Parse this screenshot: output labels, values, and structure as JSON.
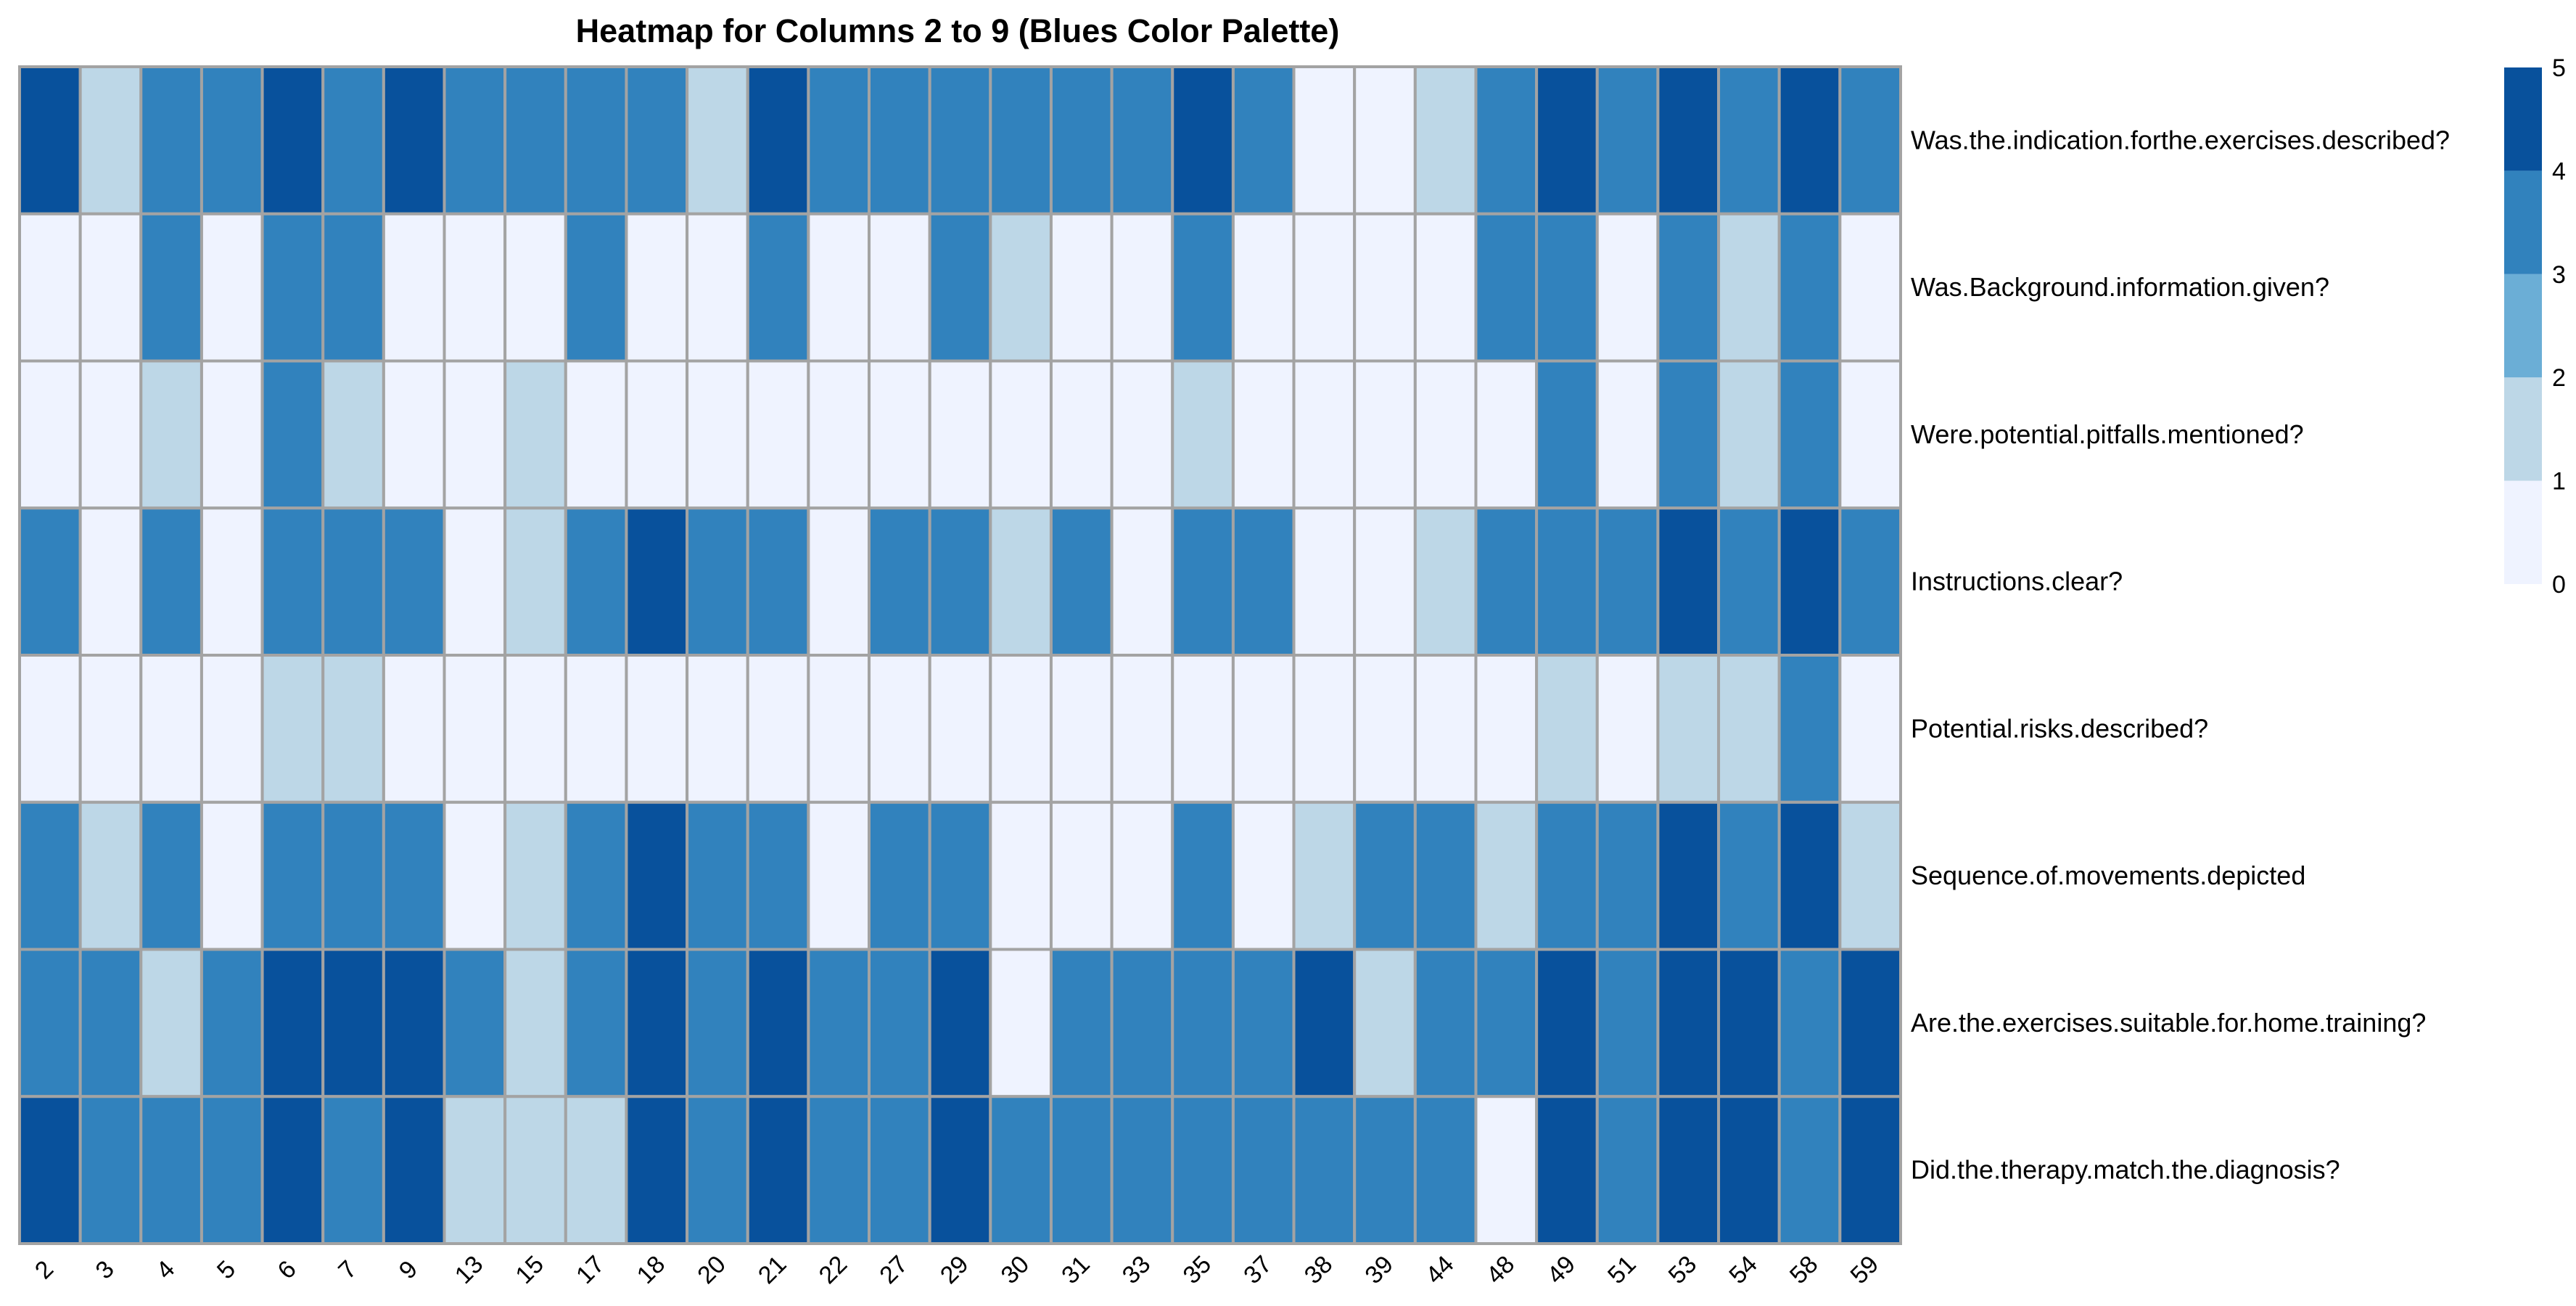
{
  "chart_data": {
    "type": "heatmap",
    "title": "Heatmap for Columns 2 to 9 (Blues Color Palette)",
    "columns": [
      "2",
      "3",
      "4",
      "5",
      "6",
      "7",
      "9",
      "13",
      "15",
      "17",
      "18",
      "20",
      "21",
      "22",
      "27",
      "29",
      "30",
      "31",
      "33",
      "35",
      "37",
      "38",
      "39",
      "44",
      "48",
      "49",
      "51",
      "53",
      "54",
      "58",
      "59"
    ],
    "rows": [
      "Was.the.indication.forthe.exercises.described?",
      "Was.Background.information.given?",
      "Were.potential.pitfalls.mentioned?",
      "Instructions.clear?",
      "Potential.risks.described?",
      "Sequence.of.movements.depicted",
      "Are.the.exercises.suitable.for.home.training?",
      "Did.the.therapy.match.the.diagnosis?"
    ],
    "values": [
      [
        5,
        1,
        3,
        3,
        5,
        4,
        5,
        3,
        4,
        4,
        4,
        1,
        5,
        3,
        3,
        4,
        3,
        3,
        3,
        5,
        3,
        0,
        0,
        1,
        3,
        5,
        3,
        5,
        4,
        5,
        3
      ],
      [
        0,
        0,
        3,
        0,
        3,
        3,
        0,
        0,
        0,
        3,
        0,
        0,
        3,
        0,
        0,
        4,
        1,
        0,
        0,
        4,
        0,
        0,
        0,
        0,
        4,
        3,
        0,
        4,
        1,
        4,
        0
      ],
      [
        0,
        0,
        1,
        0,
        3,
        1,
        0,
        0,
        1,
        0,
        0,
        0,
        0,
        0,
        0,
        0,
        0,
        0,
        0,
        1,
        0,
        0,
        0,
        0,
        0,
        4,
        0,
        3,
        1,
        3,
        0
      ],
      [
        4,
        0,
        4,
        0,
        4,
        3,
        4,
        0,
        1,
        3,
        5,
        3,
        4,
        0,
        3,
        4,
        1,
        3,
        0,
        4,
        3,
        0,
        0,
        1,
        4,
        4,
        4,
        5,
        4,
        5,
        3
      ],
      [
        0,
        0,
        0,
        0,
        1,
        1,
        0,
        0,
        0,
        0,
        0,
        0,
        0,
        0,
        0,
        0,
        0,
        0,
        0,
        0,
        0,
        0,
        0,
        0,
        0,
        1,
        0,
        1,
        1,
        4,
        0
      ],
      [
        3,
        1,
        4,
        0,
        4,
        3,
        4,
        0,
        1,
        3,
        5,
        3,
        3,
        0,
        4,
        4,
        0,
        0,
        0,
        4,
        0,
        1,
        3,
        3,
        1,
        4,
        4,
        5,
        4,
        5,
        1
      ],
      [
        4,
        4,
        1,
        3,
        5,
        5,
        5,
        4,
        1,
        3,
        5,
        4,
        5,
        3,
        3,
        5,
        0,
        4,
        3,
        4,
        3,
        5,
        1,
        3,
        3,
        5,
        4,
        5,
        5,
        4,
        5
      ],
      [
        5,
        3,
        4,
        3,
        5,
        4,
        5,
        1,
        1,
        1,
        5,
        4,
        5,
        3,
        3,
        5,
        3,
        4,
        3,
        4,
        3,
        3,
        3,
        3,
        0,
        5,
        4,
        5,
        5,
        4,
        5
      ]
    ],
    "palette": [
      "#eff3ff",
      "#bdd7e7",
      "#6baed6",
      "#3182bd",
      "#3182bd",
      "#08519c"
    ],
    "legend": {
      "position": "right",
      "ticks": [
        "0",
        "1",
        "2",
        "3",
        "4",
        "5"
      ],
      "colors": [
        "#eff3ff",
        "#bdd7e7",
        "#6baed6",
        "#3182bd",
        "#08519c"
      ]
    },
    "grid": true
  }
}
